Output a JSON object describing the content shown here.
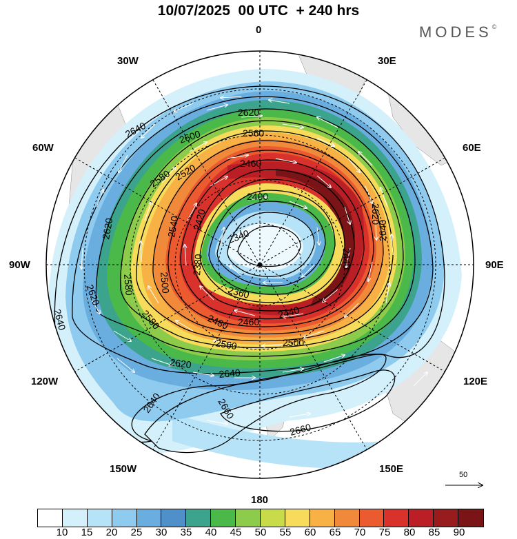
{
  "title": "10/07/2025  00 UTC  + 240 hrs",
  "brand": {
    "name": "MODES",
    "mark": "©"
  },
  "longitude_labels": {
    "lon_0": "0",
    "lon_30e": "30E",
    "lon_60e": "60E",
    "lon_90e": "90E",
    "lon_120e": "120E",
    "lon_150e": "150E",
    "lon_180": "180",
    "lon_150w": "150W",
    "lon_120w": "120W",
    "lon_90w": "90W",
    "lon_60w": "60W",
    "lon_30w": "30W"
  },
  "reference_vector": {
    "label": "50"
  },
  "colorbar": {
    "colors": [
      "#ffffff",
      "#d4f0fb",
      "#b6e3f7",
      "#8ecbee",
      "#6aaee0",
      "#4f8fca",
      "#3ca48c",
      "#4bb84a",
      "#8ccc4a",
      "#c8dc4a",
      "#f6dc5a",
      "#f7b144",
      "#f1893a",
      "#ec5a2f",
      "#d9312c",
      "#b91f24",
      "#981b1e",
      "#7a1416"
    ],
    "ticks": [
      "10",
      "15",
      "20",
      "25",
      "30",
      "35",
      "40",
      "45",
      "50",
      "55",
      "60",
      "65",
      "70",
      "75",
      "80",
      "85",
      "90"
    ]
  },
  "chart_data": {
    "type": "polar-stereographic field map (southern hemisphere)",
    "shading": "wind speed",
    "vectors": "wind direction",
    "contour_labels": [
      "2340",
      "2360",
      "2380",
      "2400",
      "2420",
      "2440",
      "2460",
      "2480",
      "2500",
      "2520",
      "2540",
      "2560",
      "2580",
      "2600",
      "2620",
      "2640",
      "2660"
    ]
  }
}
